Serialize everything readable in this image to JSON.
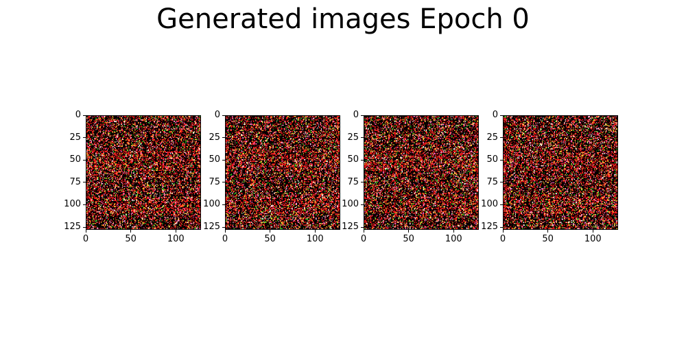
{
  "chart_data": {
    "type": "image-grid",
    "title": "Generated images Epoch 0",
    "panels": [
      {
        "panel": 1,
        "x_ticks": [
          "0",
          "50",
          "100"
        ],
        "y_ticks": [
          "0",
          "25",
          "50",
          "75",
          "100",
          "125"
        ]
      },
      {
        "panel": 2,
        "x_ticks": [
          "0",
          "50",
          "100"
        ],
        "y_ticks": [
          "0",
          "25",
          "50",
          "75",
          "100",
          "125"
        ]
      },
      {
        "panel": 3,
        "x_ticks": [
          "0",
          "50",
          "100"
        ],
        "y_ticks": [
          "0",
          "25",
          "50",
          "75",
          "100",
          "125"
        ]
      },
      {
        "panel": 4,
        "x_ticks": [
          "0",
          "50",
          "100"
        ],
        "y_ticks": [
          "0",
          "25",
          "50",
          "75",
          "100",
          "125"
        ]
      }
    ],
    "image_size": [
      128,
      128
    ],
    "xlim": [
      0,
      128
    ],
    "ylim": [
      128,
      0
    ],
    "palette": [
      "#000000",
      "#1a0000",
      "#ff1a1a",
      "#b22222",
      "#ffcc33",
      "#ff9999",
      "#22cc22",
      "#ff66cc",
      "#ffffff"
    ]
  }
}
